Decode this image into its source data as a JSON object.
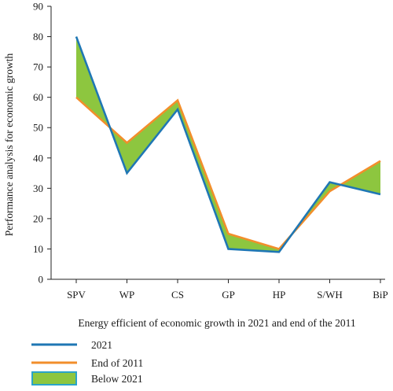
{
  "chart_data": {
    "type": "line",
    "categories": [
      "SPV",
      "WP",
      "CS",
      "GP",
      "HP",
      "S/WH",
      "BiP"
    ],
    "series": [
      {
        "name": "2021",
        "values": [
          80,
          35,
          56,
          10,
          9,
          32,
          28
        ],
        "color": "#1f77b4"
      },
      {
        "name": "End of 2011",
        "values": [
          60,
          45,
          59,
          15,
          10,
          29,
          39
        ],
        "color": "#f28e2b"
      }
    ],
    "fill_between": {
      "name": "Below 2021",
      "color": "#8dc63f",
      "edge_color": "#2aa4c9"
    },
    "xlabel": "Energy efficient of economic growth in 2021 and end of the 2011",
    "ylabel": "Performance analysis for economic growth",
    "ylim": [
      0,
      90
    ],
    "yticks": [
      0,
      10,
      20,
      30,
      40,
      50,
      60,
      70,
      80,
      90
    ],
    "grid": false,
    "legend_position": "bottom-left"
  }
}
